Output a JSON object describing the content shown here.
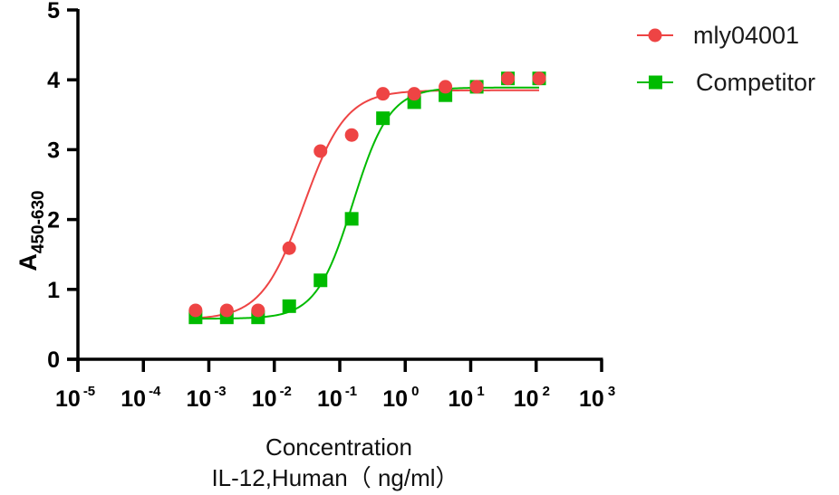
{
  "chart_data": {
    "type": "scatter",
    "title": "",
    "xlabel_line1": "Concentration",
    "xlabel_line2": "IL-12,Human（ ng/ml）",
    "ylabel_main": "A",
    "ylabel_sub": "450-630",
    "x_scale": "log10",
    "xlim": [
      1e-05,
      1000
    ],
    "ylim": [
      0,
      5
    ],
    "x_ticks": [
      {
        "base": "10",
        "exp": "-5",
        "value": -5
      },
      {
        "base": "10",
        "exp": "-4",
        "value": -4
      },
      {
        "base": "10",
        "exp": "-3",
        "value": -3
      },
      {
        "base": "10",
        "exp": "-2",
        "value": -2
      },
      {
        "base": "10",
        "exp": "-1",
        "value": -1
      },
      {
        "base": "10",
        "exp": "0",
        "value": 0
      },
      {
        "base": "10",
        "exp": "1",
        "value": 1
      },
      {
        "base": "10",
        "exp": "2",
        "value": 2
      },
      {
        "base": "10",
        "exp": "3",
        "value": 3
      }
    ],
    "y_ticks": [
      "0",
      "1",
      "2",
      "3",
      "4",
      "5"
    ],
    "grid": false,
    "legend_position": "top-right",
    "x": [
      0.000627,
      0.00188,
      0.00565,
      0.0169,
      0.0508,
      0.152,
      0.457,
      1.372,
      4.115,
      12.35,
      37.04,
      111.1
    ],
    "series": [
      {
        "name": "mly04001",
        "marker": "circle",
        "color": "#ee4444",
        "values": [
          0.7,
          0.7,
          0.7,
          1.59,
          2.98,
          3.21,
          3.8,
          3.8,
          3.9,
          3.9,
          4.02,
          4.02
        ],
        "fit": {
          "bottom": 0.57,
          "top": 3.85,
          "logEC50": -1.55,
          "hill": 1.35
        }
      },
      {
        "name": "Competitor",
        "marker": "square",
        "color": "#00bb00",
        "values": [
          0.6,
          0.6,
          0.6,
          0.76,
          1.13,
          2.01,
          3.45,
          3.68,
          3.78,
          3.9,
          4.02,
          4.02
        ],
        "fit": {
          "bottom": 0.58,
          "top": 3.89,
          "logEC50": -0.8,
          "hill": 1.55
        }
      }
    ]
  }
}
